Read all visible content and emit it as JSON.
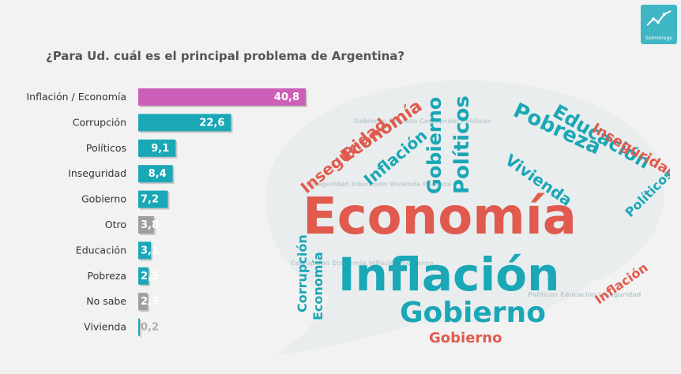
{
  "brand": {
    "logo_text": "Solmoirago",
    "accent": "#3fb6c4"
  },
  "chart_data": {
    "type": "bar",
    "orientation": "horizontal",
    "title": "¿Para Ud. cuál es el principal problema de Argentina?",
    "categories": [
      "Inflación / Economía",
      "Corrupción",
      "Políticos",
      "Inseguridad",
      "Gobierno",
      "Otro",
      "Educación",
      "Pobreza",
      "No sabe",
      "Vivienda"
    ],
    "values": [
      40.8,
      22.6,
      9.1,
      8.4,
      7.2,
      3.8,
      3.1,
      2.5,
      2.3,
      0.2
    ],
    "value_labels": [
      "40,8",
      "22,6",
      "9,1",
      "8,4",
      "7,2",
      "3,8",
      "3,1",
      "2,5",
      "2,3",
      "0,2"
    ],
    "colors": [
      "#cc5fb8",
      "#1aa7b6",
      "#1aa7b6",
      "#1aa7b6",
      "#1aa7b6",
      "#9e9e9e",
      "#1aa7b6",
      "#1aa7b6",
      "#9e9e9e",
      "#1aa7b6"
    ],
    "xlim": [
      0,
      45
    ],
    "grid": false,
    "legend": "none"
  },
  "word_cloud": {
    "words": [
      "Economía",
      "Inflación",
      "Gobierno",
      "Corrupción",
      "Políticos",
      "Inseguridad",
      "Educación",
      "Pobreza",
      "Vivienda"
    ]
  }
}
